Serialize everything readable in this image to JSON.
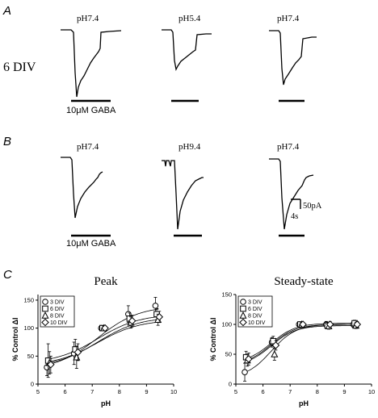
{
  "panels": {
    "A": {
      "letter": "A",
      "row_label": "6 DIV",
      "ph_labels": [
        "pH7.4",
        "pH5.4",
        "pH7.4"
      ],
      "gaba_label": "10μM GABA"
    },
    "B": {
      "letter": "B",
      "ph_labels": [
        "pH7.4",
        "pH9.4",
        "pH7.4"
      ],
      "gaba_label": "10μM GABA",
      "scale_current": "50pA",
      "scale_time": "4s"
    },
    "C": {
      "letter": "C"
    }
  },
  "chart_data": [
    {
      "type": "scatter",
      "title": "Peak",
      "xlabel": "pH",
      "ylabel": "% Control  ΔI",
      "xlim": [
        5,
        10
      ],
      "ylim": [
        0,
        160
      ],
      "xticks": [
        5,
        6,
        7,
        8,
        9,
        10
      ],
      "yticks": [
        0,
        50,
        100,
        150
      ],
      "legend_position": "top-left",
      "fit_curves": true,
      "series": [
        {
          "name": "3 DIV",
          "marker": "circle",
          "x": [
            5.4,
            6.4,
            7.4,
            8.4,
            9.4
          ],
          "y": [
            30,
            55,
            100,
            125,
            140
          ],
          "err": [
            15,
            20,
            5,
            15,
            15
          ]
        },
        {
          "name": "6 DIV",
          "marker": "square",
          "x": [
            5.4,
            6.4,
            7.4,
            8.4,
            9.4
          ],
          "y": [
            42,
            62,
            100,
            117,
            125
          ],
          "err": [
            30,
            18,
            4,
            10,
            10
          ]
        },
        {
          "name": "8 DIV",
          "marker": "triangle",
          "x": [
            5.4,
            6.4,
            7.4,
            8.4,
            9.4
          ],
          "y": [
            38,
            48,
            100,
            110,
            115
          ],
          "err": [
            20,
            20,
            4,
            10,
            10
          ]
        },
        {
          "name": "10 DIV",
          "marker": "diamond",
          "x": [
            5.4,
            6.4,
            7.4,
            8.4,
            9.4
          ],
          "y": [
            35,
            57,
            100,
            113,
            120
          ],
          "err": [
            15,
            15,
            4,
            10,
            10
          ]
        }
      ]
    },
    {
      "type": "scatter",
      "title": "Steady-state",
      "xlabel": "pH",
      "ylabel": "% Control  ΔI",
      "xlim": [
        5,
        10
      ],
      "ylim": [
        0,
        150
      ],
      "xticks": [
        5,
        6,
        7,
        8,
        9,
        10
      ],
      "yticks": [
        0,
        50,
        100,
        150
      ],
      "legend_position": "top-left",
      "fit_curves": true,
      "series": [
        {
          "name": "3 DIV",
          "marker": "circle",
          "x": [
            5.4,
            6.4,
            7.4,
            8.4,
            9.4
          ],
          "y": [
            20,
            70,
            100,
            100,
            100
          ],
          "err": [
            15,
            8,
            3,
            5,
            5
          ]
        },
        {
          "name": "6 DIV",
          "marker": "square",
          "x": [
            5.4,
            6.4,
            7.4,
            8.4,
            9.4
          ],
          "y": [
            45,
            72,
            100,
            98,
            102
          ],
          "err": [
            10,
            8,
            3,
            5,
            5
          ]
        },
        {
          "name": "8 DIV",
          "marker": "triangle",
          "x": [
            5.4,
            6.4,
            7.4,
            8.4,
            9.4
          ],
          "y": [
            40,
            50,
            100,
            97,
            98
          ],
          "err": [
            10,
            10,
            3,
            5,
            5
          ]
        },
        {
          "name": "10 DIV",
          "marker": "diamond",
          "x": [
            5.4,
            6.4,
            7.4,
            8.4,
            9.4
          ],
          "y": [
            42,
            65,
            100,
            100,
            100
          ],
          "err": [
            10,
            8,
            3,
            5,
            5
          ]
        }
      ]
    }
  ]
}
